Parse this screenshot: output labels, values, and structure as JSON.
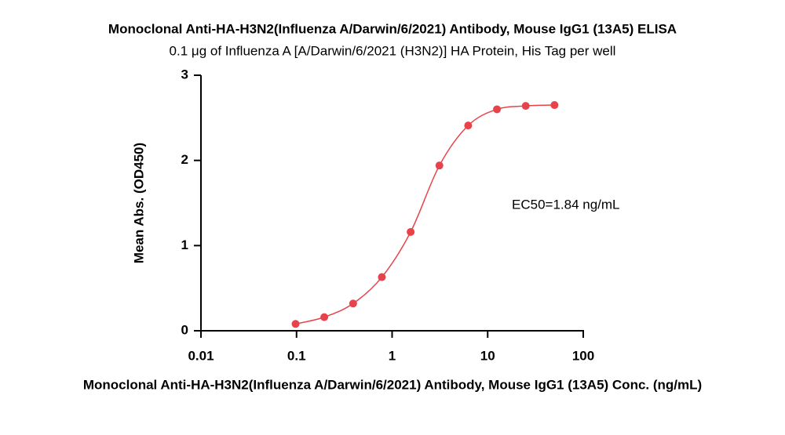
{
  "chart_data": {
    "type": "scatter",
    "title": "Monoclonal Anti-HA-H3N2(Influenza A/Darwin/6/2021) Antibody, Mouse IgG1 (13A5) ELISA",
    "subtitle": "0.1 μg of Influenza A [A/Darwin/6/2021 (H3N2)] HA Protein, His Tag per well",
    "x_label": "Monoclonal Anti-HA-H3N2(Influenza A/Darwin/6/2021) Antibody, Mouse IgG1 (13A5) Conc. (ng/mL)",
    "y_label": "Mean Abs. (OD450)",
    "annotation": "EC50=1.84 ng/mL",
    "xscale": "log",
    "xlim": [
      0.01,
      100
    ],
    "xticks": [
      0.01,
      0.1,
      1,
      10,
      100
    ],
    "ylim": [
      0,
      3
    ],
    "yticks": [
      0,
      1,
      2,
      3
    ],
    "color": "#e8434a",
    "fit_line": true,
    "x": [
      0.0977,
      0.195,
      0.391,
      0.781,
      1.5625,
      3.125,
      6.25,
      12.5,
      25,
      50
    ],
    "values": [
      0.08,
      0.16,
      0.32,
      0.63,
      1.16,
      1.94,
      2.41,
      2.6,
      2.64,
      2.65
    ]
  }
}
